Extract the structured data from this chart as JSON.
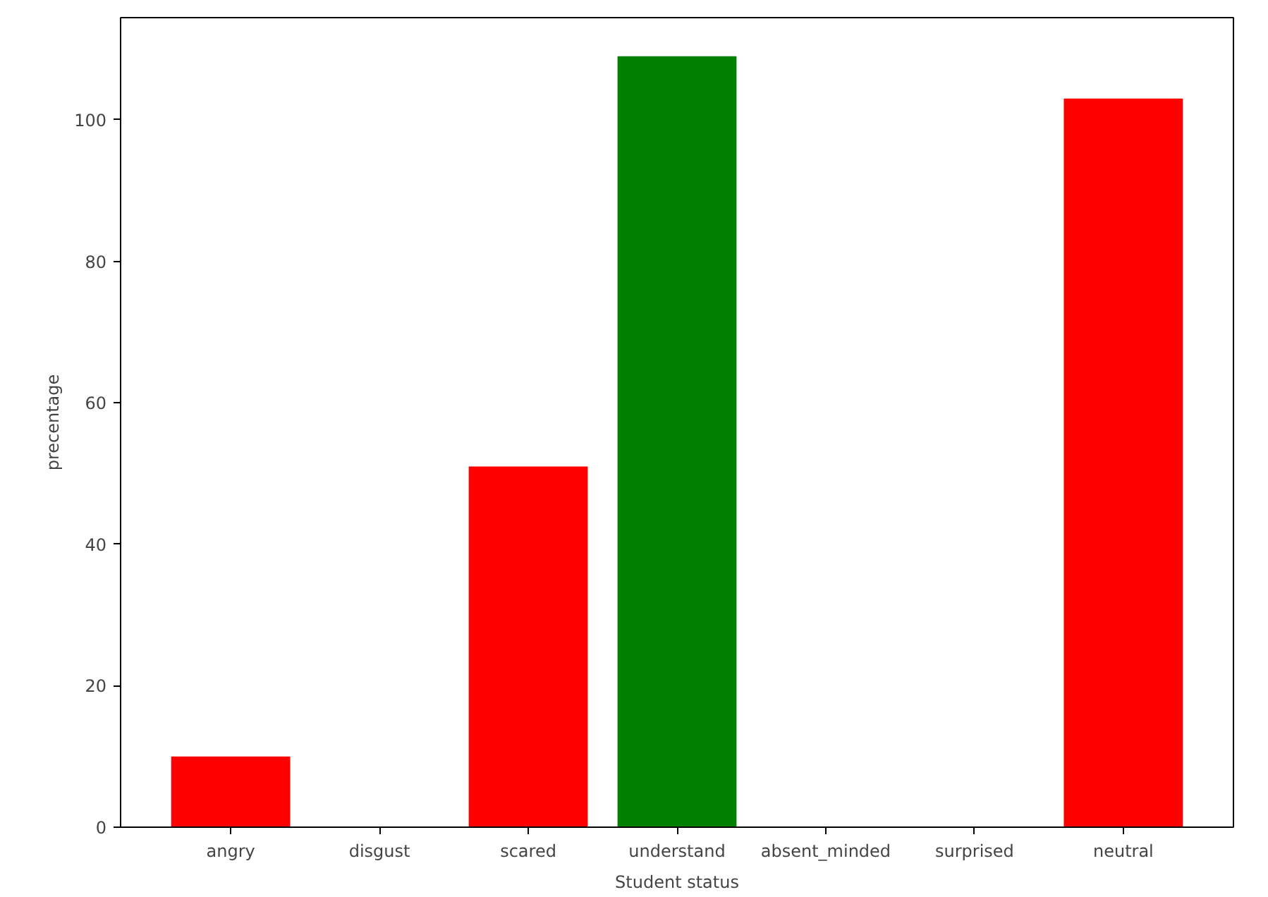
{
  "chart_data": {
    "type": "bar",
    "xlabel": "Student status",
    "ylabel": "precentage",
    "categories": [
      "angry",
      "disgust",
      "scared",
      "understand",
      "absent_minded",
      "surprised",
      "neutral"
    ],
    "values": [
      10,
      0,
      51,
      109,
      0,
      0,
      103
    ],
    "colors": [
      "#ff0000",
      "#ff0000",
      "#ff0000",
      "#008000",
      "#ff0000",
      "#ff0000",
      "#ff0000"
    ],
    "ylim": [
      0,
      114.45
    ],
    "yticks": [
      0,
      20,
      40,
      60,
      80,
      100
    ],
    "grid": false
  }
}
